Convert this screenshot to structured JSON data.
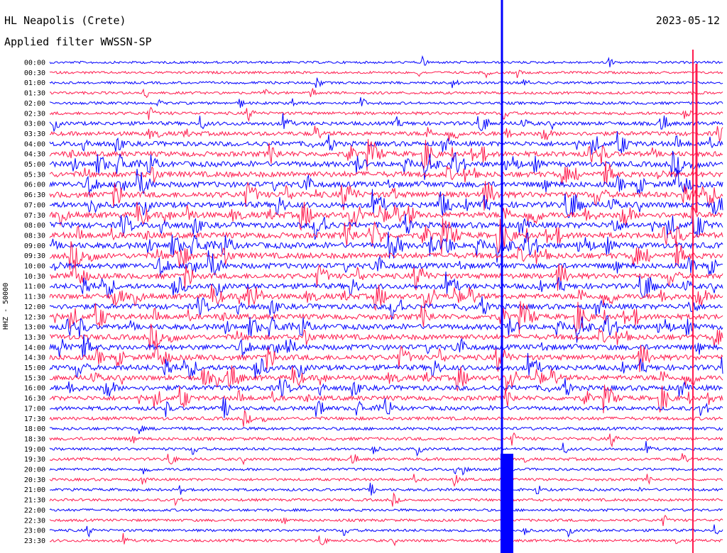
{
  "header": {
    "station": "HL Neapolis (Crete)",
    "date": "2023-05-12",
    "filter": "Applied filter WWSSN-SP"
  },
  "chart_data": {
    "type": "line",
    "title": "HL Neapolis (Crete)",
    "subtitle": "Applied filter WWSSN-SP",
    "date": "2023-05-12",
    "ylabel": "HHZ - 50000",
    "xlabel": "",
    "row_labels": [
      "00:00",
      "00:30",
      "01:00",
      "01:30",
      "02:00",
      "02:30",
      "03:00",
      "03:30",
      "04:00",
      "04:30",
      "05:00",
      "05:30",
      "06:00",
      "06:30",
      "07:00",
      "07:30",
      "08:00",
      "08:30",
      "09:00",
      "09:30",
      "10:00",
      "10:30",
      "11:00",
      "11:30",
      "12:00",
      "12:30",
      "13:00",
      "13:30",
      "14:00",
      "14:30",
      "15:00",
      "15:30",
      "16:00",
      "16:30",
      "17:00",
      "17:30",
      "18:00",
      "18:30",
      "19:00",
      "19:30",
      "20:00",
      "20:30",
      "21:00",
      "21:30",
      "22:00",
      "22:30",
      "23:00",
      "23:30"
    ],
    "series_colors": [
      "#0000ff",
      "#ff1a4d"
    ],
    "row_activity": [
      0.15,
      0.15,
      0.18,
      0.2,
      0.22,
      0.3,
      0.45,
      0.55,
      0.7,
      0.75,
      0.8,
      0.85,
      0.85,
      0.9,
      0.9,
      0.9,
      0.9,
      0.9,
      0.9,
      0.9,
      0.85,
      0.8,
      0.8,
      0.8,
      0.8,
      0.8,
      0.8,
      0.8,
      0.8,
      0.8,
      0.8,
      0.75,
      0.75,
      0.65,
      0.5,
      0.35,
      0.3,
      0.3,
      0.25,
      0.25,
      0.22,
      0.2,
      0.2,
      0.2,
      0.2,
      0.2,
      0.2,
      0.2
    ],
    "grid": false,
    "legend": "none"
  }
}
